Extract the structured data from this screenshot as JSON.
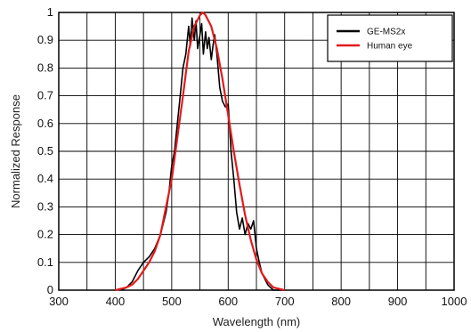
{
  "chart_data": {
    "type": "line",
    "title": "",
    "xlabel": "Wavelength (nm)",
    "ylabel": "Normalized Response",
    "xlim": [
      300,
      1000
    ],
    "ylim": [
      0,
      1
    ],
    "x_ticks": [
      "300",
      "400",
      "500",
      "600",
      "700",
      "800",
      "900",
      "1000"
    ],
    "y_ticks": [
      "0",
      "0.1",
      "0.2",
      "0.3",
      "0.4",
      "0.5",
      "0.6",
      "0.7",
      "0.8",
      "0.9",
      "1"
    ],
    "grid": true,
    "legend_position": "top-right",
    "series": [
      {
        "name": "GE-MS2x",
        "color": "#000000",
        "x": [
          410,
          420,
          430,
          440,
          450,
          460,
          470,
          480,
          490,
          495,
          500,
          505,
          510,
          515,
          520,
          525,
          530,
          533,
          536,
          540,
          543,
          546,
          550,
          553,
          556,
          560,
          563,
          566,
          570,
          573,
          576,
          580,
          585,
          590,
          595,
          600,
          605,
          610,
          615,
          620,
          625,
          630,
          635,
          640,
          645,
          650,
          655,
          660,
          665,
          670,
          675,
          680,
          690,
          700
        ],
        "y": [
          0.0,
          0.01,
          0.03,
          0.07,
          0.1,
          0.12,
          0.15,
          0.2,
          0.28,
          0.35,
          0.45,
          0.5,
          0.6,
          0.7,
          0.8,
          0.85,
          0.95,
          0.88,
          0.98,
          0.9,
          0.97,
          0.87,
          0.92,
          0.96,
          0.85,
          0.93,
          0.87,
          0.91,
          0.83,
          0.88,
          0.92,
          0.85,
          0.73,
          0.68,
          0.66,
          0.67,
          0.5,
          0.4,
          0.28,
          0.22,
          0.26,
          0.2,
          0.24,
          0.22,
          0.25,
          0.15,
          0.1,
          0.06,
          0.04,
          0.02,
          0.01,
          0.0,
          0.0,
          0.0
        ]
      },
      {
        "name": "Human eye",
        "color": "#e31a1c",
        "x": [
          400,
          410,
          420,
          430,
          440,
          450,
          460,
          470,
          480,
          490,
          500,
          510,
          520,
          530,
          540,
          550,
          555,
          560,
          570,
          580,
          590,
          600,
          610,
          620,
          630,
          640,
          650,
          660,
          670,
          680,
          690,
          700
        ],
        "y": [
          0.0,
          0.005,
          0.01,
          0.02,
          0.04,
          0.07,
          0.1,
          0.14,
          0.2,
          0.3,
          0.4,
          0.55,
          0.7,
          0.86,
          0.95,
          0.99,
          1.0,
          0.99,
          0.95,
          0.87,
          0.76,
          0.63,
          0.5,
          0.38,
          0.27,
          0.18,
          0.11,
          0.06,
          0.03,
          0.01,
          0.005,
          0.0
        ]
      }
    ]
  }
}
